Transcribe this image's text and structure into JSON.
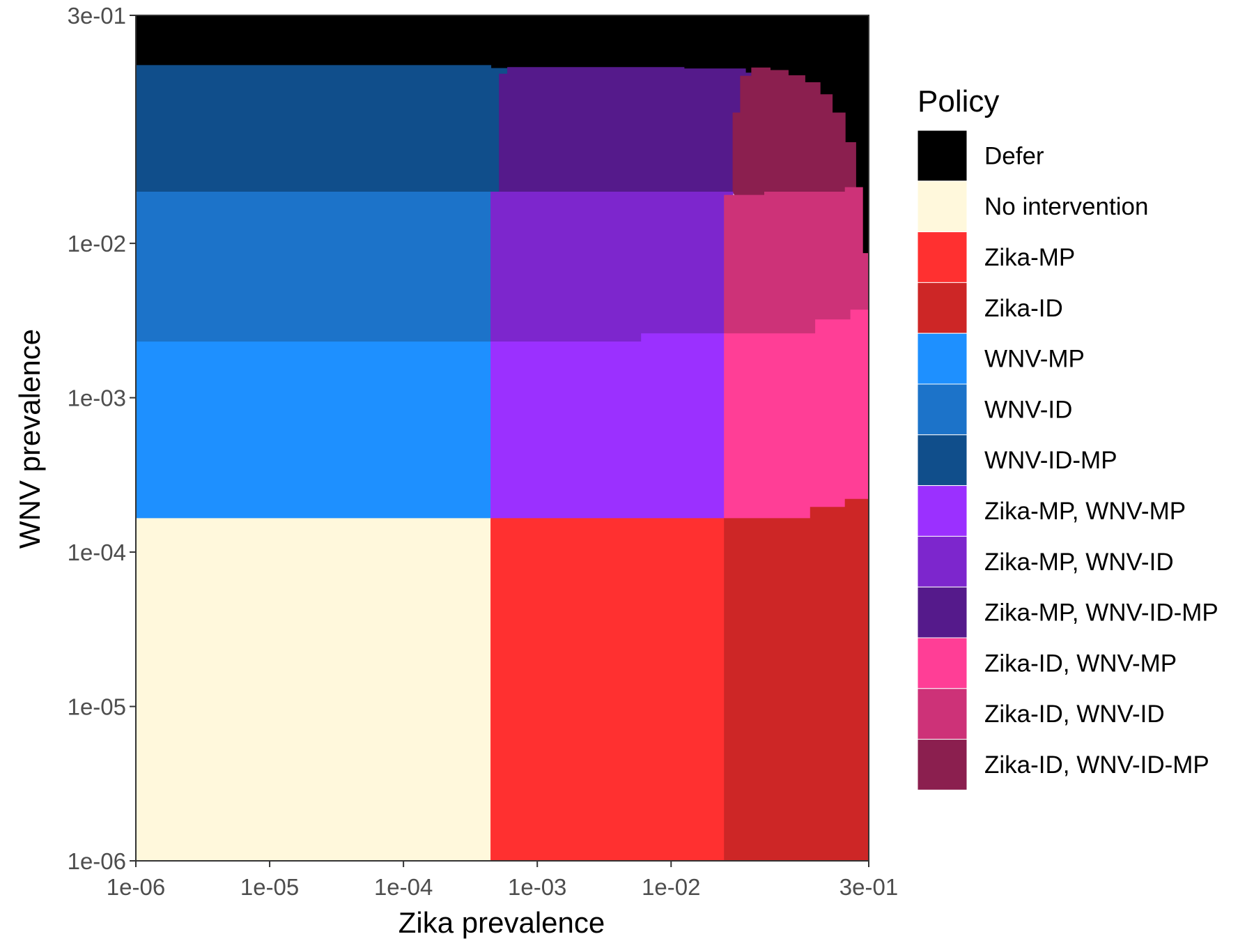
{
  "chart_data": {
    "type": "heatmap",
    "title": "",
    "xlabel": "Zika prevalence",
    "ylabel": "WNV prevalence",
    "x_scale": "log10",
    "y_scale": "log10",
    "xlim": [
      1e-06,
      0.3
    ],
    "ylim": [
      1e-06,
      0.3
    ],
    "x_ticks": [
      {
        "value": 1e-06,
        "label": "1e-06"
      },
      {
        "value": 1e-05,
        "label": "1e-05"
      },
      {
        "value": 0.0001,
        "label": "1e-04"
      },
      {
        "value": 0.001,
        "label": "1e-03"
      },
      {
        "value": 0.01,
        "label": "1e-02"
      },
      {
        "value": 0.3,
        "label": "3e-01"
      }
    ],
    "y_ticks": [
      {
        "value": 1e-06,
        "label": "1e-06"
      },
      {
        "value": 1e-05,
        "label": "1e-05"
      },
      {
        "value": 0.0001,
        "label": "1e-04"
      },
      {
        "value": 0.001,
        "label": "1e-03"
      },
      {
        "value": 0.01,
        "label": "1e-02"
      },
      {
        "value": 0.3,
        "label": "3e-01"
      }
    ],
    "grid": false,
    "legend_position": "right",
    "legend_title": "Policy",
    "policies": [
      {
        "name": "Defer",
        "color": "#000000"
      },
      {
        "name": "No intervention",
        "color": "#FFF8DC"
      },
      {
        "name": "Zika-MP",
        "color": "#FF3030"
      },
      {
        "name": "Zika-ID",
        "color": "#CD2626"
      },
      {
        "name": "WNV-MP",
        "color": "#1E90FF"
      },
      {
        "name": "WNV-ID",
        "color": "#1C73C9"
      },
      {
        "name": "WNV-ID-MP",
        "color": "#104E8B"
      },
      {
        "name": "Zika-MP, WNV-MP",
        "color": "#9B30FF"
      },
      {
        "name": "Zika-MP, WNV-ID",
        "color": "#7D26CD"
      },
      {
        "name": "Zika-MP, WNV-ID-MP",
        "color": "#551A8B"
      },
      {
        "name": "Zika-ID, WNV-MP",
        "color": "#FF3E96"
      },
      {
        "name": "Zika-ID, WNV-ID",
        "color": "#CD3278"
      },
      {
        "name": "Zika-ID, WNV-ID-MP",
        "color": "#8B1F4F"
      }
    ],
    "regions": [
      {
        "policy": "Defer",
        "polygon": [
          [
            1e-06,
            0.142
          ],
          [
            1e-06,
            0.3
          ],
          [
            0.3,
            0.3
          ],
          [
            0.3,
            0.0086
          ],
          [
            0.27,
            0.0086
          ],
          [
            0.27,
            0.023
          ],
          [
            0.24,
            0.023
          ],
          [
            0.24,
            0.045
          ],
          [
            0.2,
            0.045
          ],
          [
            0.2,
            0.07
          ],
          [
            0.16,
            0.07
          ],
          [
            0.16,
            0.092
          ],
          [
            0.13,
            0.092
          ],
          [
            0.13,
            0.11
          ],
          [
            0.1,
            0.11
          ],
          [
            0.1,
            0.122
          ],
          [
            0.075,
            0.122
          ],
          [
            0.075,
            0.132
          ],
          [
            0.055,
            0.132
          ],
          [
            0.055,
            0.137
          ],
          [
            0.04,
            0.137
          ],
          [
            0.04,
            0.127
          ],
          [
            0.036,
            0.127
          ],
          [
            0.036,
            0.135
          ],
          [
            0.0125,
            0.135
          ],
          [
            0.0125,
            0.138
          ],
          [
            0.0006,
            0.138
          ],
          [
            0.0006,
            0.136
          ],
          [
            0.00045,
            0.136
          ],
          [
            0.00045,
            0.142
          ]
        ]
      },
      {
        "policy": "WNV-ID-MP",
        "polygon": [
          [
            1e-06,
            0.0215
          ],
          [
            1e-06,
            0.142
          ],
          [
            0.00045,
            0.142
          ],
          [
            0.00045,
            0.136
          ],
          [
            0.0006,
            0.136
          ],
          [
            0.0006,
            0.125
          ],
          [
            0.00052,
            0.125
          ],
          [
            0.00052,
            0.066
          ],
          [
            0.00052,
            0.0215
          ]
        ]
      },
      {
        "policy": "Zika-MP, WNV-ID-MP",
        "polygon": [
          [
            0.00052,
            0.0215
          ],
          [
            0.00052,
            0.066
          ],
          [
            0.00052,
            0.125
          ],
          [
            0.0006,
            0.125
          ],
          [
            0.0006,
            0.138
          ],
          [
            0.0125,
            0.138
          ],
          [
            0.0125,
            0.135
          ],
          [
            0.036,
            0.135
          ],
          [
            0.036,
            0.127
          ],
          [
            0.04,
            0.127
          ],
          [
            0.04,
            0.121
          ],
          [
            0.033,
            0.121
          ],
          [
            0.033,
            0.07
          ],
          [
            0.029,
            0.07
          ],
          [
            0.029,
            0.0215
          ]
        ]
      },
      {
        "policy": "Zika-ID, WNV-ID-MP",
        "polygon": [
          [
            0.029,
            0.0215
          ],
          [
            0.029,
            0.07
          ],
          [
            0.033,
            0.07
          ],
          [
            0.033,
            0.121
          ],
          [
            0.04,
            0.121
          ],
          [
            0.04,
            0.137
          ],
          [
            0.055,
            0.137
          ],
          [
            0.055,
            0.132
          ],
          [
            0.075,
            0.132
          ],
          [
            0.075,
            0.122
          ],
          [
            0.1,
            0.122
          ],
          [
            0.1,
            0.11
          ],
          [
            0.13,
            0.11
          ],
          [
            0.13,
            0.092
          ],
          [
            0.16,
            0.092
          ],
          [
            0.16,
            0.07
          ],
          [
            0.2,
            0.07
          ],
          [
            0.2,
            0.045
          ],
          [
            0.24,
            0.045
          ],
          [
            0.24,
            0.023
          ],
          [
            0.2,
            0.023
          ],
          [
            0.2,
            0.0215
          ],
          [
            0.05,
            0.0215
          ],
          [
            0.05,
            0.0205
          ],
          [
            0.03,
            0.0205
          ]
        ]
      },
      {
        "policy": "WNV-ID",
        "polygon": [
          [
            1e-06,
            0.0023
          ],
          [
            1e-06,
            0.0215
          ],
          [
            0.00045,
            0.0215
          ],
          [
            0.00045,
            0.0023
          ]
        ]
      },
      {
        "policy": "Zika-MP, WNV-ID",
        "polygon": [
          [
            0.00045,
            0.0023
          ],
          [
            0.00045,
            0.0215
          ],
          [
            0.029,
            0.0215
          ],
          [
            0.029,
            0.0205
          ],
          [
            0.025,
            0.0205
          ],
          [
            0.025,
            0.0026
          ],
          [
            0.006,
            0.0026
          ],
          [
            0.006,
            0.0023
          ]
        ]
      },
      {
        "policy": "Zika-ID, WNV-ID",
        "polygon": [
          [
            0.025,
            0.0026
          ],
          [
            0.025,
            0.0205
          ],
          [
            0.05,
            0.0205
          ],
          [
            0.05,
            0.0215
          ],
          [
            0.2,
            0.0215
          ],
          [
            0.2,
            0.023
          ],
          [
            0.27,
            0.023
          ],
          [
            0.27,
            0.0086
          ],
          [
            0.3,
            0.0086
          ],
          [
            0.3,
            0.0037
          ],
          [
            0.22,
            0.0037
          ],
          [
            0.22,
            0.0032
          ],
          [
            0.12,
            0.0032
          ],
          [
            0.12,
            0.0026
          ]
        ]
      },
      {
        "policy": "WNV-MP",
        "polygon": [
          [
            1e-06,
            0.000165
          ],
          [
            1e-06,
            0.0023
          ],
          [
            0.00045,
            0.0023
          ],
          [
            0.00045,
            0.000165
          ]
        ]
      },
      {
        "policy": "Zika-MP, WNV-MP",
        "polygon": [
          [
            0.00045,
            0.000165
          ],
          [
            0.00045,
            0.0023
          ],
          [
            0.006,
            0.0023
          ],
          [
            0.006,
            0.0026
          ],
          [
            0.025,
            0.0026
          ],
          [
            0.025,
            0.000165
          ]
        ]
      },
      {
        "policy": "Zika-ID, WNV-MP",
        "polygon": [
          [
            0.025,
            0.000165
          ],
          [
            0.025,
            0.0026
          ],
          [
            0.12,
            0.0026
          ],
          [
            0.12,
            0.0032
          ],
          [
            0.22,
            0.0032
          ],
          [
            0.22,
            0.0037
          ],
          [
            0.3,
            0.0037
          ],
          [
            0.3,
            0.00022
          ],
          [
            0.2,
            0.00022
          ],
          [
            0.2,
            0.000195
          ],
          [
            0.11,
            0.000195
          ],
          [
            0.11,
            0.000165
          ]
        ]
      },
      {
        "policy": "No intervention",
        "polygon": [
          [
            1e-06,
            1e-06
          ],
          [
            1e-06,
            0.000165
          ],
          [
            0.00045,
            0.000165
          ],
          [
            0.00045,
            1e-06
          ]
        ]
      },
      {
        "policy": "Zika-MP",
        "polygon": [
          [
            0.00045,
            1e-06
          ],
          [
            0.00045,
            0.000165
          ],
          [
            0.025,
            0.000165
          ],
          [
            0.025,
            1e-06
          ]
        ]
      },
      {
        "policy": "Zika-ID",
        "polygon": [
          [
            0.025,
            1e-06
          ],
          [
            0.025,
            0.000165
          ],
          [
            0.11,
            0.000165
          ],
          [
            0.11,
            0.000195
          ],
          [
            0.2,
            0.000195
          ],
          [
            0.2,
            0.00022
          ],
          [
            0.3,
            0.00022
          ],
          [
            0.3,
            1e-06
          ]
        ]
      }
    ]
  }
}
